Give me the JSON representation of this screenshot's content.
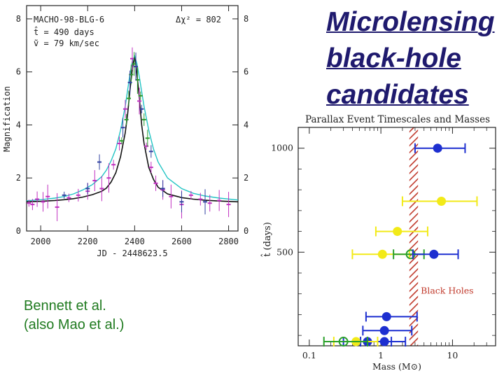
{
  "slide": {
    "title_lines": [
      "Microlensing",
      "black-hole",
      "candidates"
    ],
    "credit_lines": [
      "Bennett et al.",
      "(also Mao et al.)"
    ]
  },
  "chart_data": [
    {
      "type": "line",
      "title": "MACHO-98-BLG-6",
      "annotations": [
        "Δχ² = 802",
        "t̂ = 490 days",
        "ṽ = 79 km/sec"
      ],
      "xlabel": "JD - 2448623.5",
      "ylabel": "Magnification",
      "xlim": [
        1940,
        2840
      ],
      "ylim": [
        0,
        8.5
      ],
      "x_ticks": [
        2000,
        2200,
        2400,
        2600,
        2800
      ],
      "y_ticks": [
        0,
        2,
        4,
        6,
        8
      ],
      "y_tick_labels": [
        "0",
        "2",
        "4",
        "6",
        "8"
      ],
      "colors": {
        "parallax_fit": "#111111",
        "standard_fit": "#22c4c4",
        "data_magenta": "#c030c0",
        "data_green": "#2a9a2a",
        "data_blue": "#3040a0"
      },
      "series": [
        {
          "name": "parallax fit",
          "color": "#111111",
          "x": [
            1940,
            2000,
            2060,
            2100,
            2140,
            2180,
            2220,
            2260,
            2280,
            2300,
            2320,
            2340,
            2360,
            2370,
            2380,
            2390,
            2395,
            2400,
            2405,
            2410,
            2420,
            2430,
            2440,
            2460,
            2480,
            2500,
            2540,
            2600,
            2650,
            2700,
            2760,
            2840
          ],
          "y": [
            1.1,
            1.12,
            1.15,
            1.18,
            1.22,
            1.28,
            1.37,
            1.5,
            1.62,
            1.85,
            2.2,
            2.8,
            3.7,
            4.4,
            5.3,
            6.1,
            6.4,
            6.5,
            6.3,
            5.9,
            5.0,
            4.0,
            3.3,
            2.4,
            1.95,
            1.65,
            1.4,
            1.26,
            1.2,
            1.16,
            1.13,
            1.1
          ]
        },
        {
          "name": "standard fit",
          "color": "#22c4c4",
          "x": [
            1940,
            2000,
            2060,
            2100,
            2140,
            2180,
            2220,
            2260,
            2280,
            2300,
            2320,
            2340,
            2360,
            2380,
            2390,
            2400,
            2410,
            2420,
            2440,
            2460,
            2480,
            2500,
            2540,
            2600,
            2650,
            2700,
            2760,
            2840
          ],
          "y": [
            1.14,
            1.18,
            1.24,
            1.3,
            1.4,
            1.55,
            1.75,
            2.05,
            2.3,
            2.65,
            3.1,
            3.8,
            4.7,
            5.9,
            6.4,
            6.6,
            6.3,
            5.8,
            4.7,
            3.8,
            3.1,
            2.6,
            2.0,
            1.6,
            1.42,
            1.32,
            1.24,
            1.17
          ]
        },
        {
          "name": "data (magenta)",
          "color": "#c030c0",
          "x": [
            1950,
            1965,
            1985,
            2010,
            2030,
            2070,
            2120,
            2160,
            2200,
            2230,
            2260,
            2290,
            2310,
            2335,
            2360,
            2390,
            2420,
            2450,
            2470,
            2490,
            2520,
            2555,
            2600,
            2640,
            2680,
            2720,
            2760,
            2800
          ],
          "y": [
            1.05,
            1.0,
            1.2,
            1.1,
            1.3,
            0.9,
            1.25,
            1.35,
            1.5,
            1.9,
            1.6,
            2.0,
            2.5,
            3.3,
            4.6,
            6.5,
            4.9,
            3.2,
            2.4,
            1.8,
            1.55,
            1.3,
            1.0,
            1.35,
            1.2,
            1.05,
            1.15,
            1.0
          ]
        },
        {
          "name": "data (green)",
          "color": "#2a9a2a",
          "x": [
            2345,
            2365,
            2375,
            2385,
            2398,
            2412,
            2425,
            2440,
            2455
          ],
          "y": [
            3.4,
            4.2,
            5.0,
            5.9,
            6.3,
            5.7,
            5.1,
            4.2,
            3.5
          ]
        },
        {
          "name": "data (blue)",
          "color": "#3040a0",
          "x": [
            2100,
            2200,
            2250,
            2350,
            2380,
            2405,
            2430,
            2470,
            2520,
            2600,
            2700
          ],
          "y": [
            1.35,
            1.6,
            2.6,
            3.9,
            5.6,
            6.2,
            4.6,
            3.0,
            1.6,
            1.1,
            1.1
          ]
        }
      ]
    },
    {
      "type": "scatter",
      "title": "Parallax Event Timescales and Masses",
      "xlabel": "Mass (M⊙)",
      "ylabel": "t̂ (days)",
      "x_scale": "log",
      "xlim": [
        0.07,
        40
      ],
      "ylim": [
        1100,
        50
      ],
      "y_ticks": [
        1000,
        500
      ],
      "x_ticks": [
        0.1,
        1,
        10
      ],
      "x_tick_labels": [
        "0.1",
        "1",
        "10"
      ],
      "band": {
        "label": "Black Holes",
        "x_range": [
          2.5,
          3.3
        ],
        "color": "#c0392b"
      },
      "points": [
        {
          "mass": 6.2,
          "mass_low": 3.0,
          "mass_high": 15,
          "t": 1000,
          "color": "#1d2fd0",
          "filled": true
        },
        {
          "mass": 7.0,
          "mass_low": 2.0,
          "mass_high": 22,
          "t": 745,
          "color": "#f2ea18",
          "filled": true
        },
        {
          "mass": 1.7,
          "mass_low": 0.85,
          "mass_high": 4.5,
          "t": 600,
          "color": "#f2ea18",
          "filled": true
        },
        {
          "mass": 1.05,
          "mass_low": 0.4,
          "mass_high": 2.5,
          "t": 490,
          "color": "#f2ea18",
          "filled": true
        },
        {
          "mass": 2.6,
          "mass_low": 1.5,
          "mass_high": 4.0,
          "t": 490,
          "color": "#2aa02a",
          "filled": false
        },
        {
          "mass": 5.5,
          "mass_low": 2.8,
          "mass_high": 12,
          "t": 490,
          "color": "#1d2fd0",
          "filled": true
        },
        {
          "mass": 1.2,
          "mass_low": 0.62,
          "mass_high": 3.2,
          "t": 190,
          "color": "#1d2fd0",
          "filled": true
        },
        {
          "mass": 1.12,
          "mass_low": 0.56,
          "mass_high": 2.7,
          "t": 123,
          "color": "#1d2fd0",
          "filled": true
        },
        {
          "mass": 1.12,
          "mass_low": 0.52,
          "mass_high": 2.2,
          "t": 70,
          "color": "#1d2fd0",
          "filled": true
        },
        {
          "mass": 0.65,
          "mass_low": 0.3,
          "mass_high": 1.4,
          "t": 70,
          "color": "#1d2fd0",
          "filled": true
        },
        {
          "mass": 0.45,
          "mass_low": 0.22,
          "mass_high": 0.9,
          "t": 70,
          "color": "#f2ea18",
          "filled": true
        },
        {
          "mass": 0.3,
          "mass_low": 0.16,
          "mass_high": 0.65,
          "t": 70,
          "color": "#2aa02a",
          "filled": false
        }
      ]
    }
  ]
}
